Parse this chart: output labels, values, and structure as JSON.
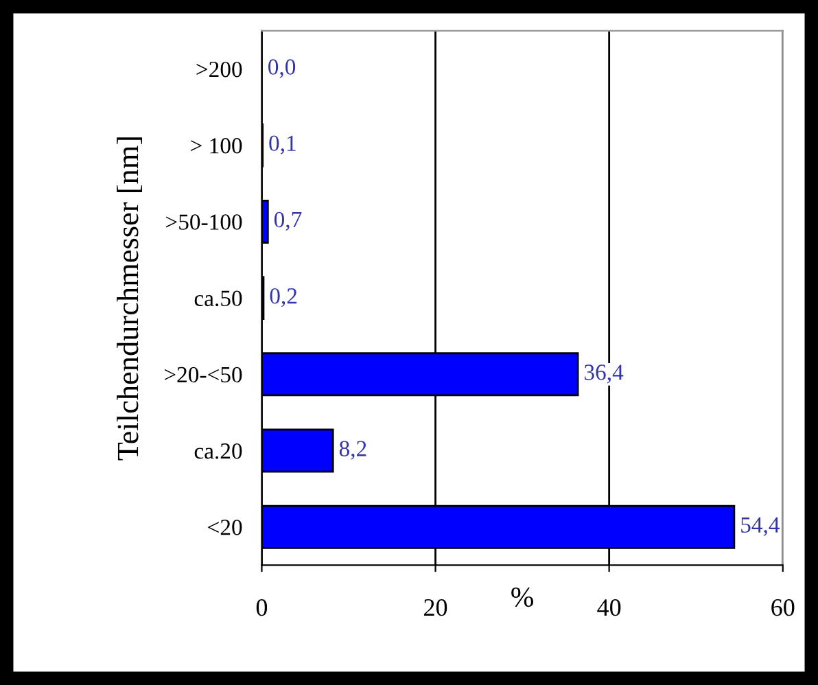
{
  "chart_data": {
    "type": "bar",
    "orientation": "horizontal",
    "ylabel": "Teilchendurchmesser [nm]",
    "xlabel": "%",
    "categories": [
      ">200",
      "> 100",
      ">50-100",
      "ca.50",
      ">20-<50",
      "ca.20",
      "<20"
    ],
    "values": [
      0.0,
      0.1,
      0.7,
      0.2,
      36.4,
      8.2,
      54.4
    ],
    "value_labels": [
      "0,0",
      "0,1",
      "0,7",
      "0,2",
      "36,4",
      "8,2",
      "54,4"
    ],
    "color": "#0000ff",
    "xlim": [
      0,
      60
    ],
    "xticks": [
      0,
      20,
      40,
      60
    ],
    "grid": "x",
    "legend": false
  }
}
